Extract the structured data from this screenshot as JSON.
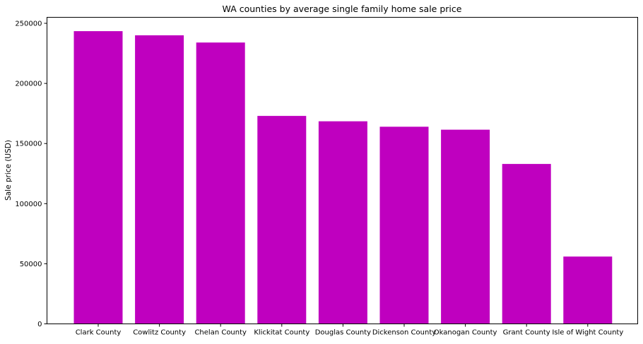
{
  "chart_data": {
    "type": "bar",
    "title": "WA counties by average single family home sale price",
    "xlabel": "",
    "ylabel": "Sale price (USD)",
    "categories": [
      "Clark County",
      "Cowlitz County",
      "Chelan County",
      "Klickitat County",
      "Douglas County",
      "Dickenson County",
      "Okanogan County",
      "Grant County",
      "Isle of Wight County"
    ],
    "values": [
      243500,
      240000,
      234000,
      173000,
      168500,
      164000,
      161500,
      133000,
      56000
    ],
    "ylim": [
      0,
      255000
    ],
    "yticks": [
      0,
      50000,
      100000,
      150000,
      200000,
      250000
    ],
    "ytick_labels": [
      "0",
      "50000",
      "100000",
      "150000",
      "200000",
      "250000"
    ],
    "bar_color": "#bf00bf",
    "grid": false,
    "legend": "none"
  }
}
